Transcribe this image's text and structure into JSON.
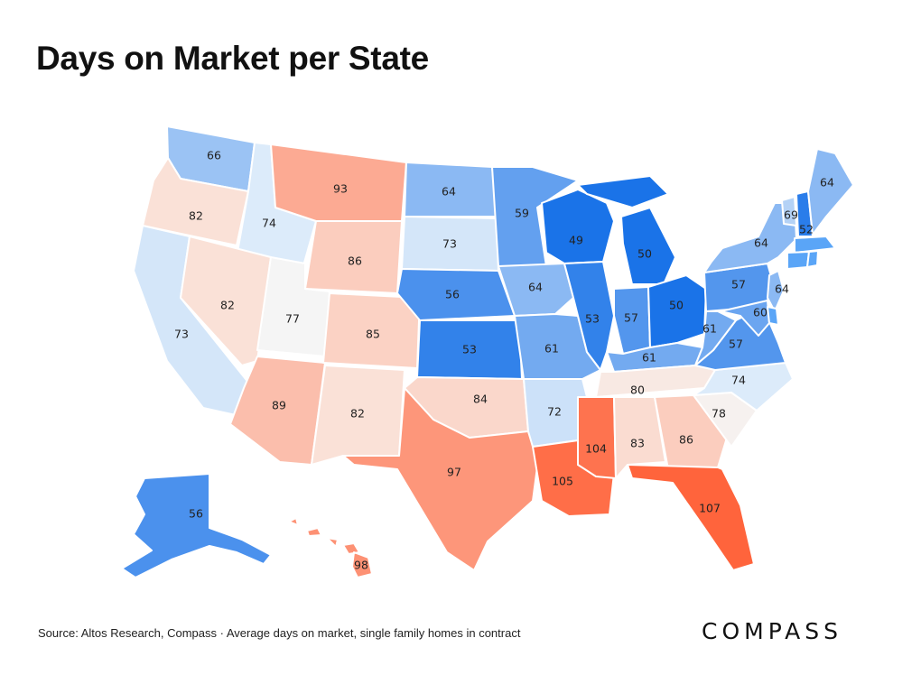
{
  "title": "Days on Market per State",
  "source": "Source: Altos Research, Compass · Average days on market, single family homes in contract",
  "logo": "COMPASS",
  "legend_colors": {
    "fastest": "#1a73e8",
    "slowest": "#ff6e40",
    "neutral": "#f5f5f5"
  },
  "chart_data": {
    "type": "choropleth",
    "title": "Days on Market per State",
    "states": [
      {
        "state": "WA",
        "value": 66
      },
      {
        "state": "OR",
        "value": 82
      },
      {
        "state": "CA",
        "value": 73
      },
      {
        "state": "ID",
        "value": 74
      },
      {
        "state": "NV",
        "value": 82
      },
      {
        "state": "MT",
        "value": 93
      },
      {
        "state": "WY",
        "value": 86
      },
      {
        "state": "UT",
        "value": 77
      },
      {
        "state": "AZ",
        "value": 89
      },
      {
        "state": "CO",
        "value": 85
      },
      {
        "state": "NM",
        "value": 82
      },
      {
        "state": "ND",
        "value": 64
      },
      {
        "state": "SD",
        "value": 73
      },
      {
        "state": "NE",
        "value": 56
      },
      {
        "state": "KS",
        "value": 53
      },
      {
        "state": "OK",
        "value": 84
      },
      {
        "state": "TX",
        "value": 97
      },
      {
        "state": "MN",
        "value": 59
      },
      {
        "state": "IA",
        "value": 64
      },
      {
        "state": "MO",
        "value": 61
      },
      {
        "state": "AR",
        "value": 72
      },
      {
        "state": "LA",
        "value": 105
      },
      {
        "state": "WI",
        "value": 49
      },
      {
        "state": "IL",
        "value": 53
      },
      {
        "state": "MI",
        "value": 50
      },
      {
        "state": "IN",
        "value": 57
      },
      {
        "state": "OH",
        "value": 50
      },
      {
        "state": "KY",
        "value": 61
      },
      {
        "state": "TN",
        "value": 80
      },
      {
        "state": "MS",
        "value": 104
      },
      {
        "state": "AL",
        "value": 83
      },
      {
        "state": "GA",
        "value": 86
      },
      {
        "state": "FL",
        "value": 107
      },
      {
        "state": "SC",
        "value": 78
      },
      {
        "state": "NC",
        "value": 74
      },
      {
        "state": "VA",
        "value": 57
      },
      {
        "state": "WV",
        "value": 61
      },
      {
        "state": "PA",
        "value": 57
      },
      {
        "state": "NY",
        "value": 64
      },
      {
        "state": "VT",
        "value": 69
      },
      {
        "state": "NH",
        "value": 52
      },
      {
        "state": "ME",
        "value": 64
      },
      {
        "state": "MD",
        "value": 60
      },
      {
        "state": "NJ",
        "value": 64
      },
      {
        "state": "AK",
        "value": 56
      },
      {
        "state": "HI",
        "value": 98
      }
    ],
    "unlabeled_states": [
      {
        "state": "MA",
        "value": null
      },
      {
        "state": "CT",
        "value": null
      },
      {
        "state": "RI",
        "value": null
      },
      {
        "state": "DE",
        "value": null
      }
    ]
  }
}
